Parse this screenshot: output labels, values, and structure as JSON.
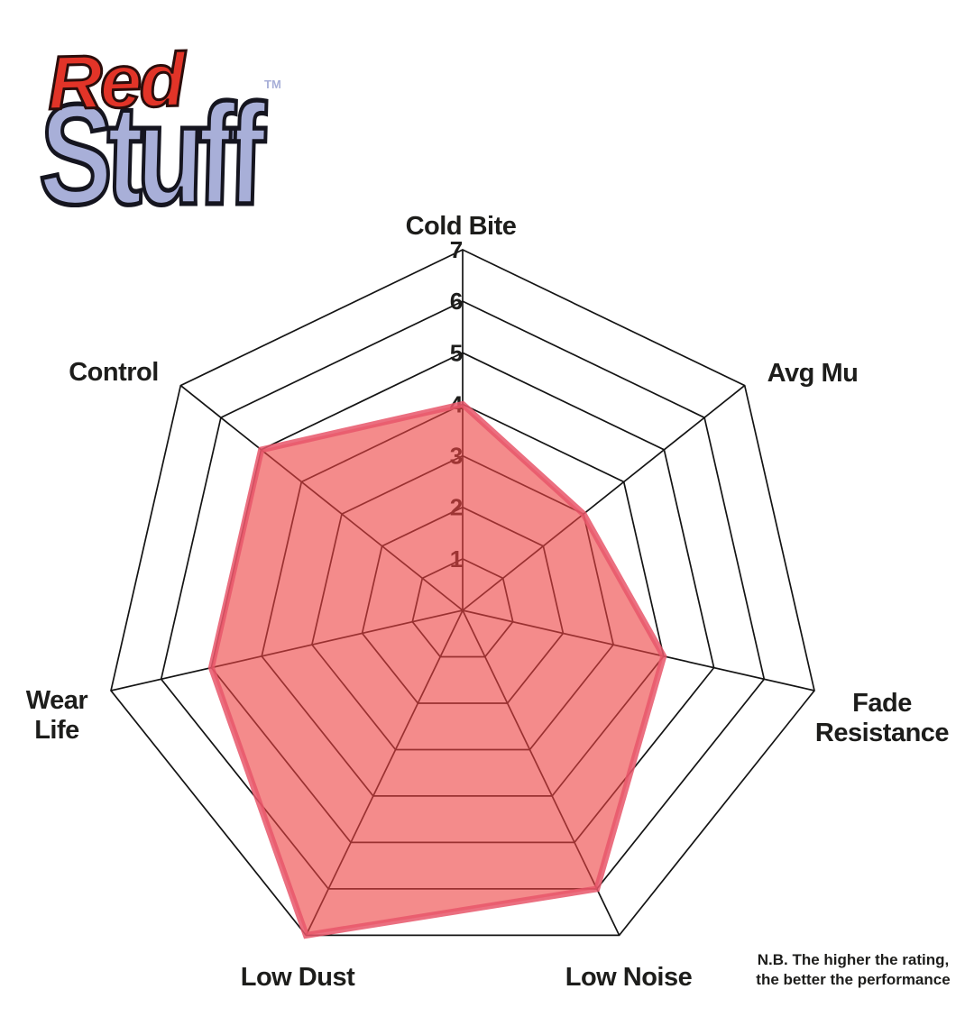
{
  "logo": {
    "word_red": "Red",
    "word_stuff": "Stuff",
    "trademark": "TM"
  },
  "footnote": {
    "line1": "N.B. The higher the rating,",
    "line2": "the better the performance"
  },
  "colors": {
    "logo_red": "#e23428",
    "logo_red_outline": "#2b0d0b",
    "logo_blue": "#a8afd8",
    "logo_blue_outline": "#15151f",
    "chart_fill": "#ee4343",
    "chart_stroke": "#e8566a",
    "grid_line": "#141414",
    "label_text": "#1d1d1b"
  },
  "chart_data": {
    "type": "radar",
    "title": "",
    "categories": [
      "Cold Bite",
      "Avg Mu",
      "Fade Resistance",
      "Low Noise",
      "Low Dust",
      "Wear Life",
      "Control"
    ],
    "values": [
      4,
      3,
      4,
      6,
      7,
      5,
      5
    ],
    "axis_ticks": [
      1,
      2,
      3,
      4,
      5,
      6,
      7
    ],
    "scale_min": 0,
    "scale_max": 7,
    "rings": 7,
    "grid": true,
    "legend": "none",
    "note": "N.B. The higher the rating, the better the performance"
  }
}
